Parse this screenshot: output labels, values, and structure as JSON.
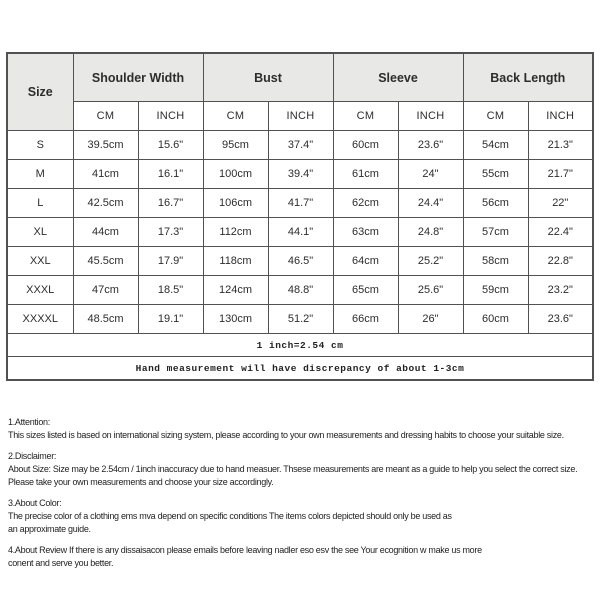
{
  "colors": {
    "header_bg": "#e8e8e6",
    "border": "#515151",
    "text": "#2d2d2d",
    "page_bg": "#ffffff"
  },
  "table": {
    "header": {
      "size_label": "Size",
      "groups": [
        {
          "label": "Shoulder Width"
        },
        {
          "label": "Bust"
        },
        {
          "label": "Sleeve"
        },
        {
          "label": "Back Length"
        }
      ],
      "units": [
        "CM",
        "INCH",
        "CM",
        "INCH",
        "CM",
        "INCH",
        "CM",
        "INCH"
      ]
    },
    "rows": [
      {
        "size": "S",
        "cells": [
          "39.5cm",
          "15.6\"",
          "95cm",
          "37.4\"",
          "60cm",
          "23.6\"",
          "54cm",
          "21.3\""
        ]
      },
      {
        "size": "M",
        "cells": [
          "41cm",
          "16.1\"",
          "100cm",
          "39.4\"",
          "61cm",
          "24\"",
          "55cm",
          "21.7\""
        ]
      },
      {
        "size": "L",
        "cells": [
          "42.5cm",
          "16.7\"",
          "106cm",
          "41.7\"",
          "62cm",
          "24.4\"",
          "56cm",
          "22\""
        ]
      },
      {
        "size": "XL",
        "cells": [
          "44cm",
          "17.3\"",
          "112cm",
          "44.1\"",
          "63cm",
          "24.8\"",
          "57cm",
          "22.4\""
        ]
      },
      {
        "size": "XXL",
        "cells": [
          "45.5cm",
          "17.9\"",
          "118cm",
          "46.5\"",
          "64cm",
          "25.2\"",
          "58cm",
          "22.8\""
        ]
      },
      {
        "size": "XXXL",
        "cells": [
          "47cm",
          "18.5\"",
          "124cm",
          "48.8\"",
          "65cm",
          "25.6\"",
          "59cm",
          "23.2\""
        ]
      },
      {
        "size": "XXXXL",
        "cells": [
          "48.5cm",
          "19.1\"",
          "130cm",
          "51.2\"",
          "66cm",
          "26\"",
          "60cm",
          "23.6\""
        ]
      }
    ],
    "footer": [
      "1 inch=2.54 cm",
      "Hand measurement will have discrepancy of about 1-3cm"
    ]
  },
  "notes": [
    {
      "lines": [
        "1.Attention:",
        "This sizes listed is based on international sizing system, please according to your own measurements and dressing habits to choose your suitable size."
      ]
    },
    {
      "lines": [
        "2.Disclaimer:",
        "About Size: Size may be 2.54cm / 1inch inaccuracy due to hand measuer. Thsese measurements are meant as a guide to help you select the correct size.",
        "Please take your own measurements and choose your size accordingly."
      ]
    },
    {
      "lines": [
        "3.About Color:",
        "The precise color of a clothing ems mva depend on specific conditions The items colors depicted should only be used as",
        "an approximate guide."
      ]
    },
    {
      "lines": [
        "4.About Review If there is any dissaisacon please emails before leaving nadler eso esv the see Your ecognition w make us more",
        "conent and serve you better."
      ]
    }
  ]
}
